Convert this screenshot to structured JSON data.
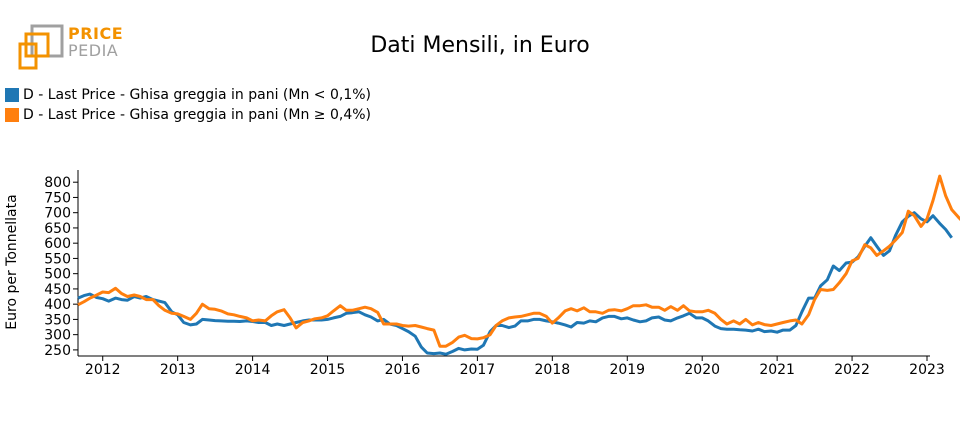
{
  "logo": {
    "word1": "PRICE",
    "word2": "PEDIA",
    "color_primary": "#f39200",
    "color_secondary": "#a0a0a0"
  },
  "chart_data": {
    "type": "line",
    "title": "Dati Mensili, in Euro",
    "xlabel": "",
    "ylabel": "Euro per Tonnellata",
    "xlim": [
      2011.67,
      2023.04
    ],
    "ylim": [
      230,
      840
    ],
    "yticks": [
      250,
      300,
      350,
      400,
      450,
      500,
      550,
      600,
      650,
      700,
      750,
      800
    ],
    "xticks": [
      2012,
      2013,
      2014,
      2015,
      2016,
      2017,
      2018,
      2019,
      2020,
      2021,
      2022,
      2023
    ],
    "grid": false,
    "legend_position": "top-left",
    "series": [
      {
        "name": "D - Last Price - Ghisa greggia in pani (Mn < 0,1%)",
        "color": "#1f77b4",
        "points": [
          [
            2011.67,
            420
          ],
          [
            2011.75,
            428
          ],
          [
            2011.83,
            433
          ],
          [
            2011.92,
            422
          ],
          [
            2012.0,
            418
          ],
          [
            2012.08,
            410
          ],
          [
            2012.17,
            420
          ],
          [
            2012.25,
            415
          ],
          [
            2012.33,
            413
          ],
          [
            2012.42,
            425
          ],
          [
            2012.5,
            420
          ],
          [
            2012.58,
            425
          ],
          [
            2012.67,
            415
          ],
          [
            2012.75,
            410
          ],
          [
            2012.83,
            405
          ],
          [
            2012.92,
            375
          ],
          [
            2013.0,
            365
          ],
          [
            2013.08,
            340
          ],
          [
            2013.17,
            332
          ],
          [
            2013.25,
            335
          ],
          [
            2013.33,
            350
          ],
          [
            2013.42,
            348
          ],
          [
            2013.5,
            346
          ],
          [
            2013.58,
            345
          ],
          [
            2013.67,
            344
          ],
          [
            2013.75,
            344
          ],
          [
            2013.83,
            343
          ],
          [
            2013.92,
            345
          ],
          [
            2014.0,
            343
          ],
          [
            2014.08,
            340
          ],
          [
            2014.17,
            340
          ],
          [
            2014.25,
            330
          ],
          [
            2014.33,
            335
          ],
          [
            2014.42,
            330
          ],
          [
            2014.5,
            335
          ],
          [
            2014.58,
            340
          ],
          [
            2014.67,
            345
          ],
          [
            2014.75,
            348
          ],
          [
            2014.83,
            348
          ],
          [
            2014.92,
            348
          ],
          [
            2015.0,
            350
          ],
          [
            2015.08,
            355
          ],
          [
            2015.17,
            360
          ],
          [
            2015.25,
            370
          ],
          [
            2015.33,
            372
          ],
          [
            2015.42,
            375
          ],
          [
            2015.5,
            365
          ],
          [
            2015.58,
            358
          ],
          [
            2015.67,
            345
          ],
          [
            2015.75,
            350
          ],
          [
            2015.83,
            335
          ],
          [
            2015.92,
            330
          ],
          [
            2016.0,
            320
          ],
          [
            2016.08,
            310
          ],
          [
            2016.17,
            295
          ],
          [
            2016.25,
            260
          ],
          [
            2016.33,
            240
          ],
          [
            2016.42,
            238
          ],
          [
            2016.5,
            240
          ],
          [
            2016.58,
            236
          ],
          [
            2016.67,
            245
          ],
          [
            2016.75,
            255
          ],
          [
            2016.83,
            250
          ],
          [
            2016.92,
            253
          ],
          [
            2017.0,
            252
          ],
          [
            2017.08,
            265
          ],
          [
            2017.17,
            310
          ],
          [
            2017.25,
            330
          ],
          [
            2017.33,
            330
          ],
          [
            2017.42,
            323
          ],
          [
            2017.5,
            328
          ],
          [
            2017.58,
            345
          ],
          [
            2017.67,
            345
          ],
          [
            2017.75,
            350
          ],
          [
            2017.83,
            350
          ],
          [
            2017.92,
            345
          ],
          [
            2018.0,
            342
          ],
          [
            2018.08,
            338
          ],
          [
            2018.17,
            332
          ],
          [
            2018.25,
            325
          ],
          [
            2018.33,
            340
          ],
          [
            2018.42,
            338
          ],
          [
            2018.5,
            345
          ],
          [
            2018.58,
            342
          ],
          [
            2018.67,
            355
          ],
          [
            2018.75,
            360
          ],
          [
            2018.83,
            360
          ],
          [
            2018.92,
            352
          ],
          [
            2019.0,
            355
          ],
          [
            2019.08,
            348
          ],
          [
            2019.17,
            342
          ],
          [
            2019.25,
            345
          ],
          [
            2019.33,
            355
          ],
          [
            2019.42,
            358
          ],
          [
            2019.5,
            348
          ],
          [
            2019.58,
            345
          ],
          [
            2019.67,
            355
          ],
          [
            2019.75,
            362
          ],
          [
            2019.83,
            370
          ],
          [
            2019.92,
            355
          ],
          [
            2020.0,
            355
          ],
          [
            2020.08,
            345
          ],
          [
            2020.17,
            328
          ],
          [
            2020.25,
            320
          ],
          [
            2020.33,
            318
          ],
          [
            2020.42,
            318
          ],
          [
            2020.5,
            316
          ],
          [
            2020.58,
            315
          ],
          [
            2020.67,
            312
          ],
          [
            2020.75,
            318
          ],
          [
            2020.83,
            310
          ],
          [
            2020.92,
            312
          ],
          [
            2021.0,
            308
          ],
          [
            2021.08,
            315
          ],
          [
            2021.17,
            315
          ],
          [
            2021.25,
            330
          ],
          [
            2021.33,
            375
          ],
          [
            2021.42,
            420
          ],
          [
            2021.5,
            420
          ],
          [
            2021.58,
            460
          ],
          [
            2021.67,
            480
          ],
          [
            2021.75,
            525
          ],
          [
            2021.83,
            510
          ],
          [
            2021.92,
            535
          ],
          [
            2022.0,
            538
          ],
          [
            2022.08,
            555
          ],
          [
            2022.17,
            590
          ],
          [
            2022.25,
            618
          ],
          [
            2022.33,
            590
          ],
          [
            2022.42,
            560
          ],
          [
            2022.5,
            575
          ],
          [
            2022.58,
            625
          ],
          [
            2022.67,
            670
          ],
          [
            2022.75,
            688
          ],
          [
            2022.83,
            700
          ],
          [
            2022.92,
            680
          ],
          [
            2023.0,
            670
          ],
          [
            2023.08,
            690
          ],
          [
            2023.17,
            665
          ],
          [
            2023.25,
            645
          ],
          [
            2023.33,
            618
          ]
        ]
      },
      {
        "name": "D - Last Price - Ghisa greggia in pani (Mn ≥ 0,4%)",
        "color": "#ff7f0e",
        "points": [
          [
            2011.67,
            398
          ],
          [
            2011.75,
            408
          ],
          [
            2011.83,
            420
          ],
          [
            2011.92,
            430
          ],
          [
            2012.0,
            440
          ],
          [
            2012.08,
            438
          ],
          [
            2012.17,
            452
          ],
          [
            2012.25,
            435
          ],
          [
            2012.33,
            425
          ],
          [
            2012.42,
            430
          ],
          [
            2012.5,
            425
          ],
          [
            2012.58,
            415
          ],
          [
            2012.67,
            415
          ],
          [
            2012.75,
            395
          ],
          [
            2012.83,
            380
          ],
          [
            2012.92,
            370
          ],
          [
            2013.0,
            368
          ],
          [
            2013.08,
            360
          ],
          [
            2013.17,
            350
          ],
          [
            2013.25,
            370
          ],
          [
            2013.33,
            400
          ],
          [
            2013.42,
            385
          ],
          [
            2013.5,
            383
          ],
          [
            2013.58,
            378
          ],
          [
            2013.67,
            368
          ],
          [
            2013.75,
            365
          ],
          [
            2013.83,
            360
          ],
          [
            2013.92,
            355
          ],
          [
            2014.0,
            345
          ],
          [
            2014.08,
            348
          ],
          [
            2014.17,
            345
          ],
          [
            2014.25,
            362
          ],
          [
            2014.33,
            375
          ],
          [
            2014.42,
            382
          ],
          [
            2014.5,
            355
          ],
          [
            2014.58,
            322
          ],
          [
            2014.67,
            340
          ],
          [
            2014.75,
            345
          ],
          [
            2014.83,
            352
          ],
          [
            2014.92,
            355
          ],
          [
            2015.0,
            362
          ],
          [
            2015.08,
            378
          ],
          [
            2015.17,
            395
          ],
          [
            2015.25,
            380
          ],
          [
            2015.33,
            380
          ],
          [
            2015.42,
            385
          ],
          [
            2015.5,
            390
          ],
          [
            2015.58,
            385
          ],
          [
            2015.67,
            373
          ],
          [
            2015.75,
            335
          ],
          [
            2015.83,
            335
          ],
          [
            2015.92,
            335
          ],
          [
            2016.0,
            330
          ],
          [
            2016.08,
            328
          ],
          [
            2016.17,
            330
          ],
          [
            2016.25,
            325
          ],
          [
            2016.33,
            320
          ],
          [
            2016.42,
            315
          ],
          [
            2016.5,
            262
          ],
          [
            2016.58,
            262
          ],
          [
            2016.67,
            275
          ],
          [
            2016.75,
            292
          ],
          [
            2016.83,
            298
          ],
          [
            2016.92,
            287
          ],
          [
            2017.0,
            286
          ],
          [
            2017.08,
            290
          ],
          [
            2017.17,
            300
          ],
          [
            2017.25,
            330
          ],
          [
            2017.33,
            345
          ],
          [
            2017.42,
            355
          ],
          [
            2017.5,
            358
          ],
          [
            2017.58,
            360
          ],
          [
            2017.67,
            365
          ],
          [
            2017.75,
            370
          ],
          [
            2017.83,
            370
          ],
          [
            2017.92,
            360
          ],
          [
            2018.0,
            338
          ],
          [
            2018.08,
            355
          ],
          [
            2018.17,
            378
          ],
          [
            2018.25,
            385
          ],
          [
            2018.33,
            378
          ],
          [
            2018.42,
            388
          ],
          [
            2018.5,
            375
          ],
          [
            2018.58,
            375
          ],
          [
            2018.67,
            370
          ],
          [
            2018.75,
            380
          ],
          [
            2018.83,
            382
          ],
          [
            2018.92,
            378
          ],
          [
            2019.0,
            385
          ],
          [
            2019.08,
            395
          ],
          [
            2019.17,
            395
          ],
          [
            2019.25,
            398
          ],
          [
            2019.33,
            390
          ],
          [
            2019.42,
            390
          ],
          [
            2019.5,
            380
          ],
          [
            2019.58,
            392
          ],
          [
            2019.67,
            380
          ],
          [
            2019.75,
            395
          ],
          [
            2019.83,
            378
          ],
          [
            2019.92,
            375
          ],
          [
            2020.0,
            375
          ],
          [
            2020.08,
            380
          ],
          [
            2020.17,
            370
          ],
          [
            2020.25,
            350
          ],
          [
            2020.33,
            335
          ],
          [
            2020.42,
            345
          ],
          [
            2020.5,
            335
          ],
          [
            2020.58,
            350
          ],
          [
            2020.67,
            332
          ],
          [
            2020.75,
            340
          ],
          [
            2020.83,
            333
          ],
          [
            2020.92,
            330
          ],
          [
            2021.0,
            335
          ],
          [
            2021.08,
            340
          ],
          [
            2021.17,
            345
          ],
          [
            2021.25,
            348
          ],
          [
            2021.33,
            335
          ],
          [
            2021.42,
            365
          ],
          [
            2021.5,
            415
          ],
          [
            2021.58,
            448
          ],
          [
            2021.67,
            445
          ],
          [
            2021.75,
            448
          ],
          [
            2021.83,
            470
          ],
          [
            2021.92,
            500
          ],
          [
            2022.0,
            542
          ],
          [
            2022.08,
            550
          ],
          [
            2022.17,
            595
          ],
          [
            2022.25,
            585
          ],
          [
            2022.33,
            560
          ],
          [
            2022.42,
            575
          ],
          [
            2022.5,
            590
          ],
          [
            2022.58,
            610
          ],
          [
            2022.67,
            635
          ],
          [
            2022.75,
            705
          ],
          [
            2022.83,
            690
          ],
          [
            2022.92,
            655
          ],
          [
            2023.0,
            680
          ],
          [
            2023.08,
            740
          ],
          [
            2023.17,
            820
          ],
          [
            2023.25,
            755
          ],
          [
            2023.33,
            710
          ],
          [
            2023.42,
            685
          ],
          [
            2023.5,
            665
          ]
        ]
      }
    ]
  }
}
